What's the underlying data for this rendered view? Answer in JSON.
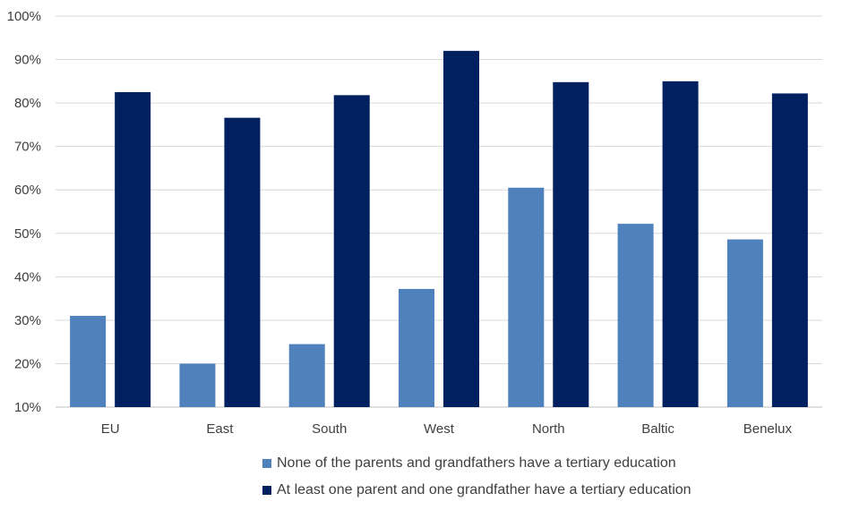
{
  "chart_data": {
    "type": "bar",
    "title": "",
    "xlabel": "",
    "ylabel": "",
    "ylim": [
      0.1,
      1.0
    ],
    "yticks": [
      "10%",
      "20%",
      "30%",
      "40%",
      "50%",
      "60%",
      "70%",
      "80%",
      "90%",
      "100%"
    ],
    "grid": true,
    "legend_position": "bottom",
    "categories": [
      "EU",
      "East",
      "South",
      "West",
      "North",
      "Baltic",
      "Benelux"
    ],
    "series": [
      {
        "name": "None of the parents and grandfathers have a tertiary education",
        "color": "#4f81bd",
        "values": [
          0.31,
          0.2,
          0.245,
          0.372,
          0.605,
          0.522,
          0.486
        ]
      },
      {
        "name": "At least one parent and one grandfather have a tertiary education",
        "color": "#002060",
        "values": [
          0.825,
          0.766,
          0.818,
          0.92,
          0.848,
          0.85,
          0.822
        ]
      }
    ]
  }
}
